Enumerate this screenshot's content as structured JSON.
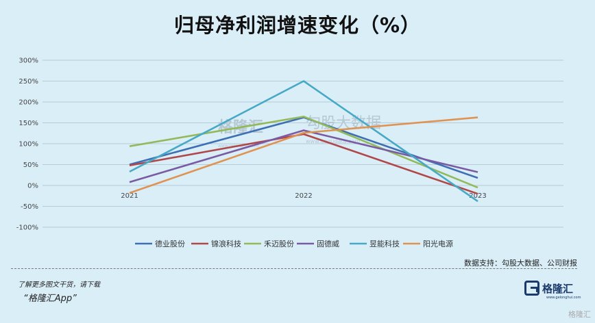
{
  "title": "归母净利润增速变化（%）",
  "source": "数据支持：勾股大数据、公司财报",
  "promo": "了解更多图文干货，请下载",
  "promo_app": "“格隆汇App”",
  "logo_text": "格隆汇",
  "logo_sub": "www.gelonghui.com",
  "watermark": {
    "left_text": "格隆汇",
    "left_sub": "www.gelonghui.com",
    "right_text": "勾股大数据",
    "right_sub": "www.gogudata.com"
  },
  "bottom_watermark": "格隆汇",
  "colors": {
    "grid": "#b7cbd6",
    "axis_label": "#444"
  },
  "chart_data": {
    "type": "line",
    "x": [
      "2021",
      "2022",
      "2023"
    ],
    "ylim": [
      -100,
      300
    ],
    "yticks": [
      -100,
      -50,
      0,
      50,
      100,
      150,
      200,
      250,
      300
    ],
    "ytick_labels": [
      "-100%",
      "-50%",
      "0%",
      "50%",
      "100%",
      "150%",
      "200%",
      "250%",
      "300%"
    ],
    "legend_position": "bottom",
    "grid": true,
    "series": [
      {
        "name": "德业股份",
        "color": "#3f6fb3",
        "values": [
          50,
          163,
          18
        ]
      },
      {
        "name": "锦浪科技",
        "color": "#b0474a",
        "values": [
          48,
          123,
          -20
        ]
      },
      {
        "name": "禾迈股份",
        "color": "#93b95a",
        "values": [
          94,
          165,
          -5
        ]
      },
      {
        "name": "固德威",
        "color": "#7a5aa2",
        "values": [
          8,
          132,
          32
        ]
      },
      {
        "name": "昱能科技",
        "color": "#47a9c6",
        "values": [
          33,
          250,
          -38
        ]
      },
      {
        "name": "阳光电源",
        "color": "#df9352",
        "values": [
          -18,
          126,
          163
        ]
      }
    ]
  }
}
